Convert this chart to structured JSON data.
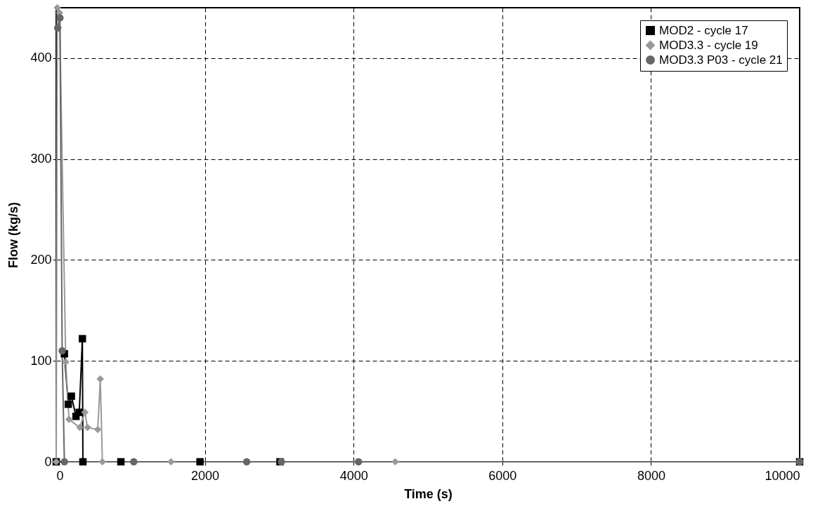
{
  "chart_data": {
    "type": "line",
    "xlabel": "Time (s)",
    "ylabel": "Flow (kg/s)",
    "xlim": [
      0,
      10000
    ],
    "ylim": [
      0,
      450
    ],
    "xticks": [
      0,
      2000,
      4000,
      6000,
      8000,
      10000
    ],
    "yticks": [
      0,
      100,
      200,
      300,
      400
    ],
    "grid": true,
    "legend": "top right",
    "line_style": "solid",
    "series": [
      {
        "name": "MOD2 - cycle 17",
        "color": "#000000",
        "marker": "square",
        "x": [
          0,
          30,
          110,
          162,
          204,
          266,
          310,
          352,
          359,
          870,
          1934,
          3010,
          10000
        ],
        "values": [
          0,
          null,
          107,
          57,
          65,
          45,
          49,
          122,
          0,
          0,
          0,
          0,
          0
        ]
      },
      {
        "name": "MOD3.3 - cycle 19",
        "color": "#999999",
        "marker": "diamond",
        "x": [
          0,
          15,
          45,
          128,
          172,
          317,
          386,
          421,
          559,
          593,
          621,
          1544,
          4560,
          10000
        ],
        "values": [
          0,
          450,
          445,
          99,
          42,
          34,
          49,
          34,
          32,
          82,
          0,
          0,
          0,
          0
        ]
      },
      {
        "name": "MOD3.3 P03 - cycle 21",
        "color": "#666666",
        "marker": "circle",
        "x": [
          20,
          50,
          80,
          110,
          1043,
          2562,
          3028,
          4066,
          10000
        ],
        "values": [
          430,
          440,
          110,
          0,
          0,
          0,
          0,
          0,
          0
        ]
      }
    ]
  }
}
